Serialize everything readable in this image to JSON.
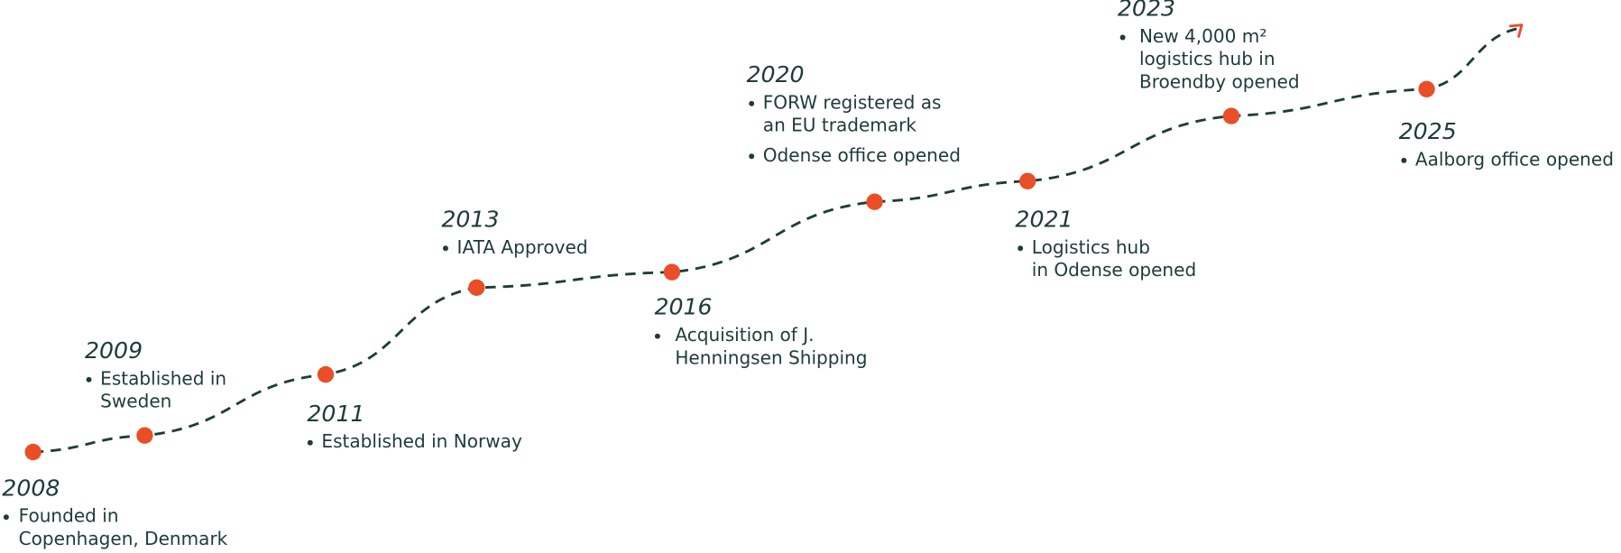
{
  "milestones": [
    {
      "year": "2008",
      "items": [
        [
          "Founded in",
          "Copenhagen, Denmark"
        ]
      ]
    },
    {
      "year": "2009",
      "items": [
        [
          "Established in",
          "Sweden"
        ]
      ]
    },
    {
      "year": "2011",
      "items": [
        [
          "Established in Norway"
        ]
      ]
    },
    {
      "year": "2013",
      "items": [
        [
          "IATA Approved"
        ]
      ]
    },
    {
      "year": "2016",
      "items": [
        [
          "Acquisition of J.",
          "Henningsen Shipping"
        ]
      ]
    },
    {
      "year": "2020",
      "items": [
        [
          "FORW registered as",
          "an EU trademark"
        ],
        [
          "Odense office opened"
        ]
      ]
    },
    {
      "year": "2021",
      "items": [
        [
          "Logistics hub",
          "in Odense opened"
        ]
      ]
    },
    {
      "year": "2023",
      "items": [
        [
          "New 4,000 m²",
          "logistics hub in",
          "Broendby opened"
        ]
      ]
    },
    {
      "year": "2025",
      "items": [
        [
          "Aalborg office opened"
        ]
      ]
    }
  ]
}
